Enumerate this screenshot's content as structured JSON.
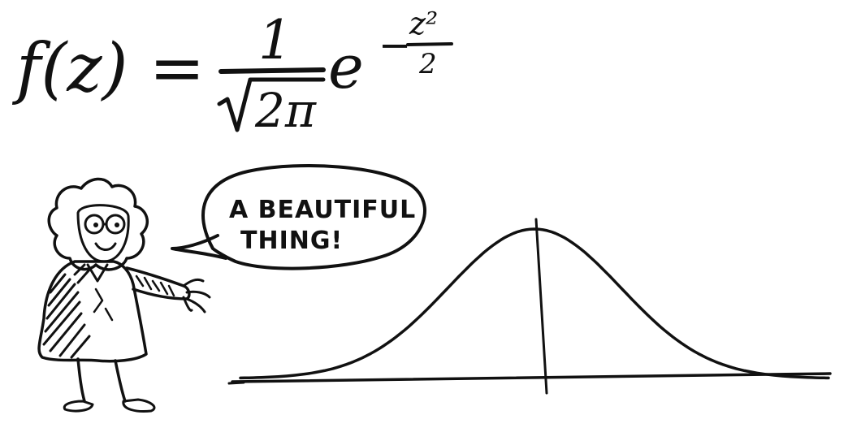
{
  "formula": {
    "lhs": "f(z) =",
    "numerator": "1",
    "radical": "√",
    "denominator": "2π",
    "base": "e",
    "exponent_sign": "−",
    "exponent_numerator": "z²",
    "exponent_denominator": "2"
  },
  "speech_bubble": {
    "line1": "A BEAUTIFUL",
    "line2": "THING!"
  },
  "curve": {
    "type": "normal-distribution-bell-curve",
    "mean": 0,
    "std": 1,
    "x_range": [
      -3.4,
      3.4
    ]
  },
  "colors": {
    "ink": "#111111",
    "background": "#ffffff"
  }
}
